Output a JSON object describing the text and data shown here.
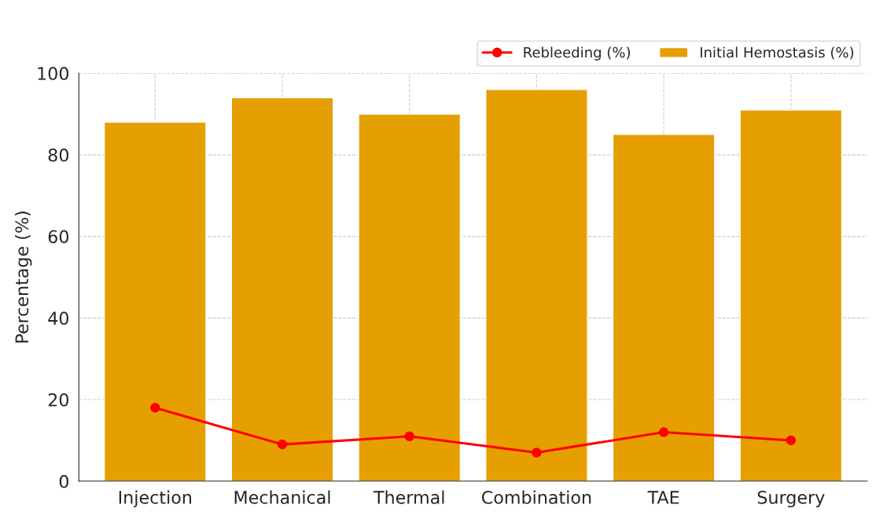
{
  "chart_data": {
    "type": "bar",
    "ylabel": "Percentage (%)",
    "categories": [
      "Injection",
      "Mechanical",
      "Thermal",
      "Combination",
      "TAE",
      "Surgery"
    ],
    "series": [
      {
        "name": "Initial Hemostasis (%)",
        "color": "#e69f00",
        "values": [
          88,
          94,
          90,
          96,
          85,
          91
        ]
      },
      {
        "name": "Rebleeding (%)",
        "type": "line",
        "color": "#ff0000",
        "marker": "circle",
        "values": [
          18,
          9,
          11,
          7,
          12,
          10
        ]
      }
    ],
    "ylim": [
      0,
      100
    ],
    "yticks": [
      0,
      20,
      40,
      60,
      80,
      100
    ],
    "grid": true,
    "legend": "top right"
  }
}
